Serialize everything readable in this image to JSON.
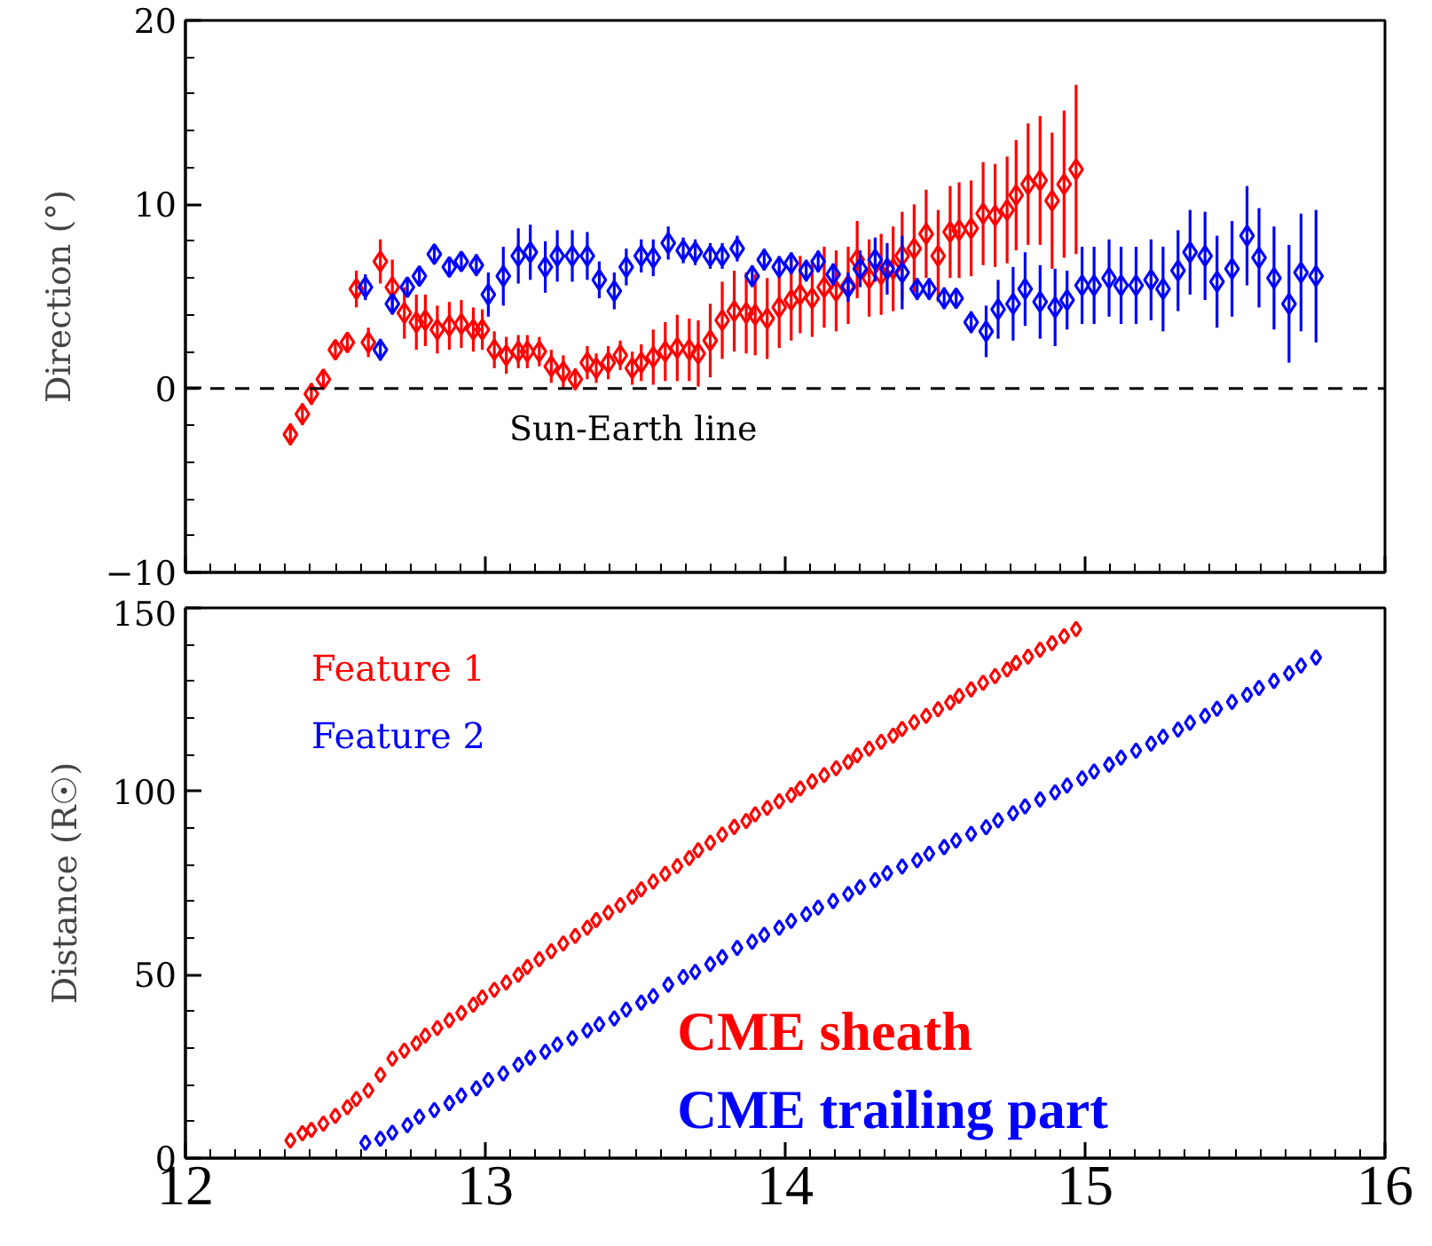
{
  "chart_data": [
    {
      "type": "scatter",
      "ylabel": "Direction (°)",
      "marker": "diamond",
      "grid": false,
      "legend": false,
      "tick_labels": "y",
      "xlim": [
        12,
        16
      ],
      "xticks": [
        12,
        13,
        14,
        15,
        16
      ],
      "ylim": [
        -10,
        20
      ],
      "yticks": [
        -10,
        0,
        10,
        20
      ],
      "ref_lines": [
        {
          "axis": "y",
          "value": 0,
          "label": "Sun-Earth line",
          "color": "#000000",
          "line_style": "dashed"
        }
      ],
      "series": [
        {
          "color": "#ff0000",
          "x": [
            12.35,
            12.39,
            12.42,
            12.46,
            12.5,
            12.54,
            12.57,
            12.61,
            12.65,
            12.69,
            12.73,
            12.77,
            12.8,
            12.84,
            12.88,
            12.92,
            12.96,
            12.99,
            13.03,
            13.07,
            13.11,
            13.14,
            13.18,
            13.22,
            13.26,
            13.3,
            13.34,
            13.37,
            13.41,
            13.45,
            13.49,
            13.52,
            13.56,
            13.6,
            13.64,
            13.68,
            13.71,
            13.75,
            13.79,
            13.83,
            13.87,
            13.9,
            13.94,
            13.98,
            14.02,
            14.05,
            14.09,
            14.13,
            14.17,
            14.21,
            14.24,
            14.28,
            14.32,
            14.36,
            14.39,
            14.43,
            14.47,
            14.51,
            14.55,
            14.58,
            14.62,
            14.66,
            14.7,
            14.74,
            14.77,
            14.81,
            14.85,
            14.89,
            14.93,
            14.97
          ],
          "values": [
            -2.5,
            -1.4,
            -0.3,
            0.5,
            2.1,
            2.5,
            5.4,
            2.5,
            6.9,
            5.5,
            4.1,
            3.6,
            3.7,
            3.2,
            3.4,
            3.5,
            3.2,
            3.2,
            2.1,
            1.8,
            2.0,
            2.0,
            2.0,
            1.2,
            0.9,
            0.5,
            1.4,
            1.1,
            1.4,
            1.8,
            1.1,
            1.4,
            1.7,
            2.0,
            2.2,
            2.1,
            1.9,
            2.6,
            3.7,
            4.2,
            4.1,
            4.0,
            3.8,
            4.4,
            4.8,
            5.1,
            4.9,
            5.5,
            5.3,
            5.6,
            7.0,
            6.0,
            6.2,
            6.5,
            7.2,
            7.6,
            8.4,
            7.2,
            8.5,
            8.6,
            8.7,
            9.5,
            9.4,
            9.7,
            10.5,
            11.1,
            11.3,
            10.2,
            11.1,
            11.9
          ],
          "errors": [
            0.6,
            0.6,
            0.6,
            0.5,
            0.5,
            0.5,
            1.0,
            0.8,
            1.2,
            1.5,
            1.4,
            1.5,
            1.4,
            1.3,
            1.3,
            1.3,
            1.2,
            1.1,
            1.0,
            1.0,
            0.9,
            0.9,
            0.8,
            0.9,
            0.9,
            0.6,
            0.9,
            0.8,
            0.9,
            0.8,
            0.9,
            1.0,
            1.5,
            1.6,
            1.8,
            1.7,
            1.8,
            2.0,
            2.1,
            2.2,
            2.2,
            2.2,
            2.2,
            2.2,
            2.2,
            2.1,
            2.1,
            2.2,
            2.2,
            2.1,
            2.1,
            2.1,
            2.2,
            2.3,
            2.4,
            2.4,
            2.4,
            2.5,
            2.5,
            2.6,
            2.6,
            2.8,
            2.8,
            2.9,
            3.0,
            3.3,
            3.5,
            3.7,
            4.0,
            4.6
          ]
        },
        {
          "color": "#0000ff",
          "x": [
            12.6,
            12.65,
            12.69,
            12.74,
            12.78,
            12.83,
            12.88,
            12.92,
            12.97,
            13.01,
            13.06,
            13.11,
            13.15,
            13.2,
            13.24,
            13.29,
            13.34,
            13.38,
            13.43,
            13.47,
            13.52,
            13.56,
            13.61,
            13.66,
            13.7,
            13.75,
            13.79,
            13.84,
            13.89,
            13.93,
            13.98,
            14.02,
            14.07,
            14.11,
            14.16,
            14.21,
            14.25,
            14.3,
            14.34,
            14.39,
            14.44,
            14.48,
            14.53,
            14.57,
            14.62,
            14.67,
            14.71,
            14.76,
            14.8,
            14.85,
            14.9,
            14.94,
            14.99,
            15.03,
            15.08,
            15.12,
            15.17,
            15.22,
            15.26,
            15.31,
            15.35,
            15.4,
            15.44,
            15.49,
            15.54,
            15.58,
            15.63,
            15.68,
            15.72,
            15.77
          ],
          "values": [
            5.5,
            2.1,
            4.6,
            5.5,
            6.1,
            7.3,
            6.6,
            6.9,
            6.7,
            5.1,
            6.1,
            7.2,
            7.4,
            6.6,
            7.2,
            7.2,
            7.2,
            5.9,
            5.3,
            6.6,
            7.2,
            7.1,
            7.9,
            7.5,
            7.4,
            7.2,
            7.2,
            7.6,
            6.1,
            7.0,
            6.6,
            6.8,
            6.4,
            6.9,
            6.2,
            5.5,
            6.5,
            7.0,
            6.5,
            6.3,
            5.4,
            5.4,
            4.9,
            4.9,
            3.6,
            3.1,
            4.3,
            4.6,
            5.4,
            4.7,
            4.4,
            4.8,
            5.6,
            5.6,
            6.0,
            5.6,
            5.6,
            5.9,
            5.4,
            6.4,
            7.4,
            7.2,
            5.8,
            6.5,
            8.3,
            7.1,
            6.0,
            4.6,
            6.3,
            6.1
          ],
          "errors": [
            0.7,
            0.6,
            0.5,
            0.4,
            0.4,
            0.4,
            0.4,
            0.5,
            0.6,
            1.2,
            1.6,
            1.5,
            1.5,
            1.4,
            1.4,
            1.4,
            1.3,
            1.0,
            1.0,
            1.0,
            0.9,
            1.0,
            0.9,
            0.7,
            0.7,
            0.7,
            0.7,
            0.7,
            0.6,
            0.6,
            0.6,
            0.6,
            0.6,
            0.6,
            0.6,
            0.8,
            1.0,
            1.2,
            1.4,
            2.0,
            0.6,
            0.6,
            0.6,
            0.5,
            0.6,
            1.4,
            1.6,
            2.0,
            2.0,
            2.0,
            2.1,
            1.6,
            2.1,
            2.1,
            2.1,
            2.1,
            2.1,
            2.2,
            2.3,
            2.2,
            2.3,
            2.4,
            2.5,
            2.6,
            2.7,
            2.7,
            2.8,
            3.2,
            3.2,
            3.6
          ]
        }
      ]
    },
    {
      "type": "scatter",
      "ylabel": "Distance (R☉)",
      "marker": "diamond",
      "grid": false,
      "legend": "top left",
      "xlim": [
        12,
        16
      ],
      "xticks": [
        12,
        13,
        14,
        15,
        16
      ],
      "ylim": [
        0,
        150
      ],
      "yticks": [
        0,
        50,
        100,
        150
      ],
      "annotations": [
        "CME sheath",
        "CME trailing part"
      ],
      "series": [
        {
          "name": "Feature 1",
          "color": "#ff0000",
          "x": [
            12.35,
            12.39,
            12.42,
            12.46,
            12.5,
            12.54,
            12.57,
            12.61,
            12.65,
            12.69,
            12.73,
            12.77,
            12.8,
            12.84,
            12.88,
            12.92,
            12.96,
            12.99,
            13.03,
            13.07,
            13.11,
            13.14,
            13.18,
            13.22,
            13.26,
            13.3,
            13.34,
            13.37,
            13.41,
            13.45,
            13.49,
            13.52,
            13.56,
            13.6,
            13.64,
            13.68,
            13.71,
            13.75,
            13.79,
            13.83,
            13.87,
            13.9,
            13.94,
            13.98,
            14.02,
            14.05,
            14.09,
            14.13,
            14.17,
            14.21,
            14.24,
            14.28,
            14.32,
            14.36,
            14.39,
            14.43,
            14.47,
            14.51,
            14.55,
            14.58,
            14.62,
            14.66,
            14.7,
            14.74,
            14.77,
            14.81,
            14.85,
            14.89,
            14.93,
            14.97
          ],
          "values": [
            4.8,
            6.8,
            7.7,
            9.4,
            11.5,
            13.9,
            16.1,
            18.5,
            22.7,
            27.1,
            29.3,
            31.3,
            33.4,
            35.5,
            37.6,
            39.6,
            41.8,
            43.8,
            45.9,
            47.9,
            50.0,
            52.1,
            54.2,
            56.4,
            58.5,
            60.6,
            62.8,
            64.9,
            66.9,
            69.0,
            71.2,
            73.3,
            75.4,
            77.5,
            79.6,
            81.8,
            83.9,
            86.0,
            88.2,
            90.3,
            91.9,
            93.7,
            95.5,
            97.3,
            99.0,
            100.8,
            102.7,
            104.4,
            106.3,
            108.0,
            109.8,
            111.6,
            113.5,
            115.2,
            117.0,
            118.8,
            120.6,
            122.4,
            124.2,
            126.0,
            127.8,
            129.6,
            131.4,
            133.2,
            135.0,
            136.7,
            138.6,
            140.4,
            142.3,
            144.2
          ]
        },
        {
          "name": "Feature 2",
          "color": "#0000ff",
          "x": [
            12.6,
            12.65,
            12.69,
            12.74,
            12.78,
            12.83,
            12.88,
            12.92,
            12.97,
            13.01,
            13.06,
            13.11,
            13.15,
            13.2,
            13.24,
            13.29,
            13.34,
            13.38,
            13.43,
            13.47,
            13.52,
            13.56,
            13.61,
            13.66,
            13.7,
            13.75,
            13.79,
            13.84,
            13.89,
            13.93,
            13.98,
            14.02,
            14.07,
            14.11,
            14.16,
            14.21,
            14.25,
            14.3,
            14.34,
            14.39,
            14.44,
            14.48,
            14.53,
            14.57,
            14.62,
            14.67,
            14.71,
            14.76,
            14.8,
            14.85,
            14.9,
            14.94,
            14.99,
            15.03,
            15.08,
            15.12,
            15.17,
            15.22,
            15.26,
            15.31,
            15.35,
            15.4,
            15.44,
            15.49,
            15.54,
            15.58,
            15.63,
            15.68,
            15.72,
            15.77
          ],
          "values": [
            4.2,
            5.3,
            6.9,
            9.0,
            11.3,
            13.1,
            15.0,
            17.1,
            19.0,
            21.3,
            23.1,
            25.5,
            27.4,
            29.0,
            31.0,
            32.7,
            34.8,
            36.5,
            38.1,
            40.5,
            42.4,
            44.2,
            47.3,
            49.4,
            50.8,
            52.9,
            54.8,
            57.3,
            59.0,
            60.9,
            62.8,
            64.7,
            66.5,
            68.3,
            70.1,
            72.0,
            73.9,
            75.8,
            77.7,
            79.5,
            81.2,
            83.0,
            84.8,
            86.6,
            88.4,
            90.2,
            92.1,
            94.0,
            95.9,
            97.8,
            99.7,
            101.6,
            103.5,
            105.4,
            107.3,
            109.2,
            111.1,
            113.0,
            114.9,
            116.8,
            118.7,
            120.6,
            122.5,
            124.4,
            126.3,
            128.2,
            130.1,
            132.2,
            134.3,
            136.5
          ]
        }
      ]
    }
  ]
}
